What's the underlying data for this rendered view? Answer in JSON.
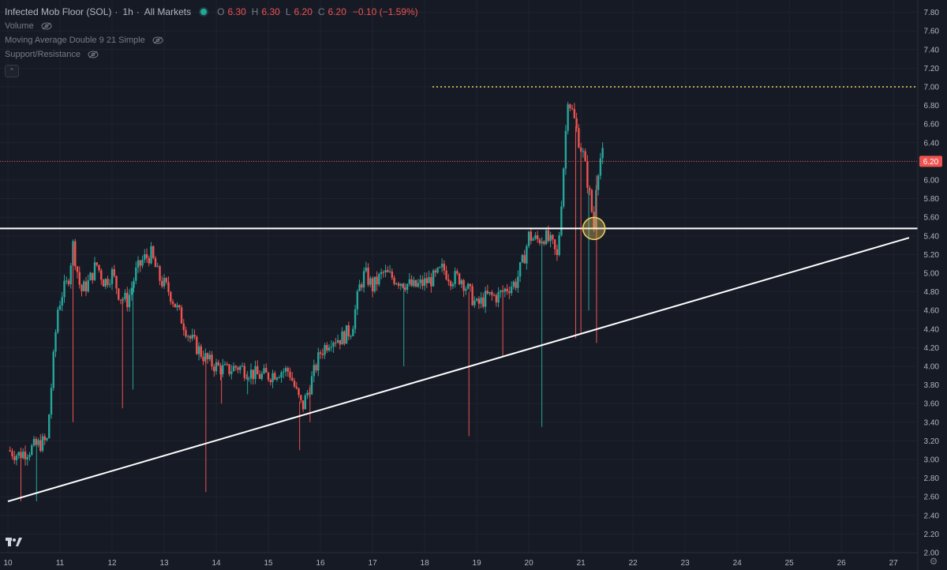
{
  "legend": {
    "symbol": "Infected Mob Floor (SOL)",
    "interval": "1h",
    "market": "All Markets",
    "ohlc": {
      "o_label": "O",
      "o": "6.30",
      "h_label": "H",
      "h": "6.30",
      "l_label": "L",
      "l": "6.20",
      "c_label": "C",
      "c": "6.20",
      "change": "−0.10 (−1.59%)"
    },
    "indicators": [
      "Volume",
      "Moving Average Double 9 21 Simple",
      "Support/Resistance"
    ]
  },
  "price_tag": "6.20",
  "colors": {
    "background": "#161a25",
    "grid": "#1f2330",
    "up": "#26a69a",
    "down": "#ef5350",
    "line": "#ffffff",
    "dotted": "#f0d264",
    "price_tag": "#ef5350"
  },
  "chart_data": {
    "type": "candlestick",
    "title": "Infected Mob Floor (SOL) · 1h · All Markets",
    "x_ticks": [
      "10",
      "11",
      "12",
      "13",
      "14",
      "15",
      "16",
      "17",
      "18",
      "19",
      "20",
      "21",
      "22",
      "23",
      "24",
      "25",
      "26",
      "27"
    ],
    "y_ticks": [
      "2.00",
      "2.20",
      "2.40",
      "2.60",
      "2.80",
      "3.00",
      "3.20",
      "3.40",
      "3.60",
      "3.80",
      "4.00",
      "4.20",
      "4.40",
      "4.60",
      "4.80",
      "5.00",
      "5.20",
      "5.40",
      "5.60",
      "5.80",
      "6.00",
      "6.20",
      "6.40",
      "6.60",
      "6.80",
      "7.00",
      "7.20",
      "7.40",
      "7.60",
      "7.80"
    ],
    "ylim": [
      2.0,
      7.9
    ],
    "xlim": [
      10.0,
      27.3
    ],
    "last_price": 6.2,
    "close_path": [
      [
        10.0,
        3.1
      ],
      [
        10.2,
        3.05
      ],
      [
        10.4,
        3.1
      ],
      [
        10.55,
        3.15
      ],
      [
        10.75,
        3.2
      ],
      [
        10.85,
        3.9
      ],
      [
        10.95,
        4.6
      ],
      [
        11.05,
        4.8
      ],
      [
        11.15,
        4.9
      ],
      [
        11.25,
        5.3
      ],
      [
        11.4,
        4.8
      ],
      [
        11.55,
        4.9
      ],
      [
        11.7,
        5.1
      ],
      [
        11.85,
        4.9
      ],
      [
        12.0,
        5.0
      ],
      [
        12.15,
        4.75
      ],
      [
        12.3,
        4.7
      ],
      [
        12.45,
        5.0
      ],
      [
        12.6,
        5.15
      ],
      [
        12.75,
        5.2
      ],
      [
        12.9,
        4.95
      ],
      [
        13.1,
        4.8
      ],
      [
        13.3,
        4.55
      ],
      [
        13.5,
        4.3
      ],
      [
        13.7,
        4.15
      ],
      [
        13.85,
        4.05
      ],
      [
        14.0,
        4.0
      ],
      [
        14.2,
        3.95
      ],
      [
        14.4,
        4.0
      ],
      [
        14.6,
        3.95
      ],
      [
        14.8,
        3.9
      ],
      [
        15.0,
        3.9
      ],
      [
        15.2,
        3.95
      ],
      [
        15.4,
        3.95
      ],
      [
        15.55,
        3.7
      ],
      [
        15.65,
        3.55
      ],
      [
        15.8,
        3.8
      ],
      [
        16.0,
        4.15
      ],
      [
        16.2,
        4.3
      ],
      [
        16.4,
        4.3
      ],
      [
        16.6,
        4.4
      ],
      [
        16.75,
        4.85
      ],
      [
        16.85,
        5.0
      ],
      [
        17.0,
        4.85
      ],
      [
        17.2,
        5.0
      ],
      [
        17.4,
        4.95
      ],
      [
        17.6,
        4.9
      ],
      [
        17.8,
        4.85
      ],
      [
        18.0,
        4.9
      ],
      [
        18.2,
        4.95
      ],
      [
        18.35,
        5.05
      ],
      [
        18.5,
        4.95
      ],
      [
        18.7,
        4.95
      ],
      [
        18.85,
        4.8
      ],
      [
        19.0,
        4.65
      ],
      [
        19.2,
        4.75
      ],
      [
        19.4,
        4.75
      ],
      [
        19.6,
        4.85
      ],
      [
        19.75,
        4.9
      ],
      [
        19.9,
        5.15
      ],
      [
        20.0,
        5.4
      ],
      [
        20.15,
        5.35
      ],
      [
        20.3,
        5.4
      ],
      [
        20.45,
        5.3
      ],
      [
        20.55,
        5.15
      ],
      [
        20.65,
        6.0
      ],
      [
        20.75,
        6.9
      ],
      [
        20.85,
        6.7
      ],
      [
        20.95,
        6.45
      ],
      [
        21.05,
        6.25
      ],
      [
        21.15,
        5.9
      ],
      [
        21.25,
        5.5
      ],
      [
        21.3,
        6.05
      ],
      [
        21.4,
        6.3
      ],
      [
        21.45,
        6.2
      ]
    ],
    "wick_spikes": [
      [
        10.25,
        2.55
      ],
      [
        10.55,
        2.55
      ],
      [
        11.25,
        3.4
      ],
      [
        12.2,
        3.55
      ],
      [
        12.4,
        3.75
      ],
      [
        13.8,
        2.65
      ],
      [
        14.1,
        3.6
      ],
      [
        14.6,
        3.7
      ],
      [
        15.6,
        3.1
      ],
      [
        15.8,
        3.4
      ],
      [
        17.6,
        4.0
      ],
      [
        18.85,
        3.25
      ],
      [
        19.5,
        4.1
      ],
      [
        20.25,
        3.35
      ],
      [
        20.9,
        4.3
      ],
      [
        21.0,
        4.35
      ],
      [
        21.15,
        4.6
      ],
      [
        21.3,
        4.25
      ]
    ],
    "horizontal_level": 5.48,
    "dotted_level": 7.0,
    "dotted_start_x": 18.15,
    "trendline": [
      [
        10.0,
        2.55
      ],
      [
        27.3,
        5.38
      ]
    ],
    "highlight_point": [
      21.25,
      5.48
    ]
  }
}
